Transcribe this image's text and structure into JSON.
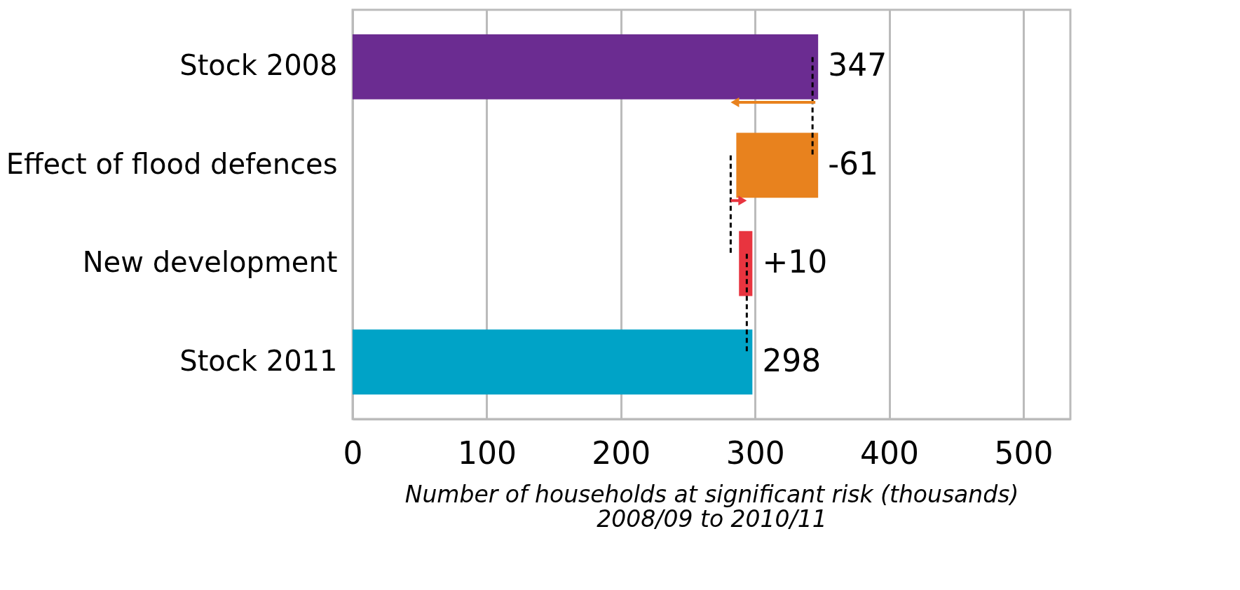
{
  "chart_data": {
    "type": "bar",
    "orientation": "horizontal",
    "xlabel": "Number of households at significant risk (thousands)\n2008/09 to 2010/11",
    "categories": [
      "Stock 2008",
      "Effect of flood defences",
      "New development",
      "Stock 2011"
    ],
    "values": [
      347,
      -61,
      10,
      298
    ],
    "base": [
      0,
      347,
      288,
      0
    ],
    "colors": [
      "#6b2c91",
      "#e8821e",
      "#e8343f",
      "#00a3c7"
    ],
    "value_labels": [
      "347",
      "-61",
      "+10",
      "298"
    ],
    "xlim": [
      0,
      535
    ],
    "xticks": [
      0,
      100,
      200,
      300,
      400,
      500
    ],
    "grid": "x"
  }
}
